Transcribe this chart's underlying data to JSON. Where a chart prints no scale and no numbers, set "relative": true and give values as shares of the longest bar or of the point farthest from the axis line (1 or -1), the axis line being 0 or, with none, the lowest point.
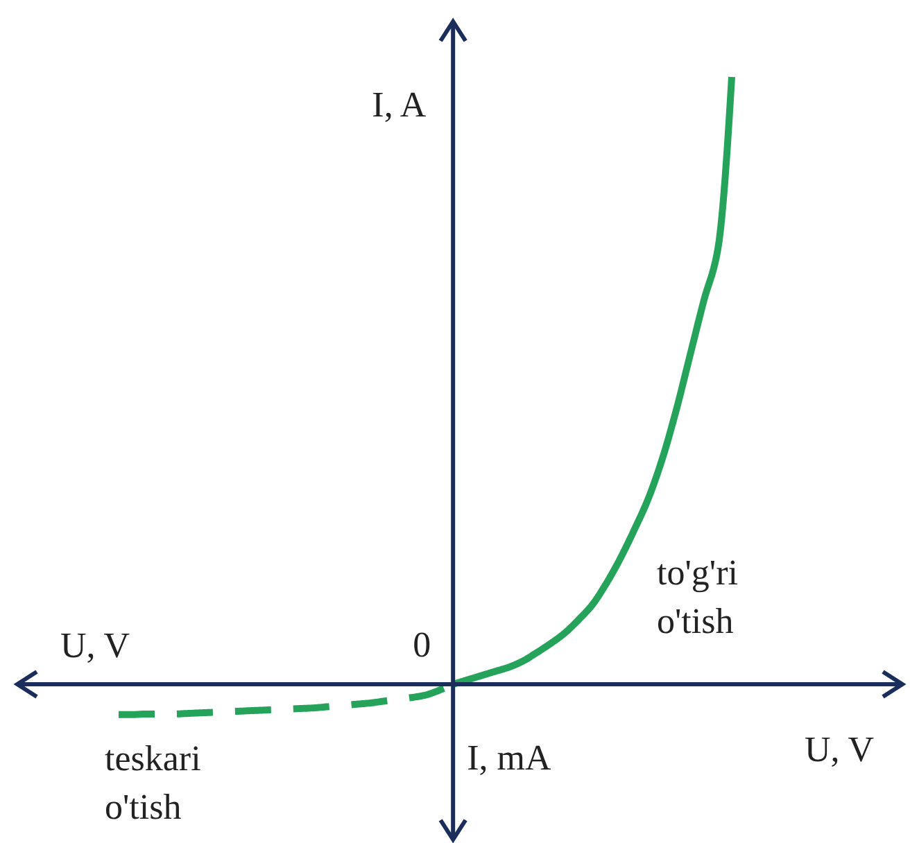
{
  "chart_data": {
    "type": "line",
    "relative": true,
    "xlabel": "U, V",
    "ylabel": "I, A",
    "annotations": [
      "0",
      "U, V",
      "I, mA"
    ],
    "categories": [
      null,
      null,
      null,
      null,
      null,
      null,
      null,
      null,
      null,
      null,
      null,
      null,
      null,
      null,
      null,
      null,
      null,
      null,
      null,
      null,
      null,
      null,
      null,
      null,
      null,
      null,
      null,
      null,
      null,
      null,
      null,
      null,
      null,
      null,
      null,
      null,
      null,
      null,
      null,
      null,
      null,
      null,
      null,
      null,
      null
    ],
    "series": [
      {
        "name": "to'g'ri o'tish",
        "color": "#25a35a",
        "line_style": "solid",
        "values": [
          null,
          null,
          null,
          null,
          null,
          null,
          null,
          null,
          null,
          null,
          null,
          null,
          null,
          null,
          null,
          null,
          null,
          null,
          null,
          null,
          null,
          null,
          null,
          null,
          0,
          0.007,
          0.014,
          0.021,
          0.028,
          0.038,
          0.052,
          0.067,
          0.084,
          0.106,
          0.131,
          0.166,
          0.207,
          0.254,
          0.305,
          0.37,
          0.45,
          0.541,
          0.632,
          0.716,
          1.0
        ]
      },
      {
        "name": "teskari o'tish",
        "color": "#25a35a",
        "line_style": "dashed",
        "values": [
          -0.05,
          -0.05,
          -0.049,
          -0.049,
          -0.049,
          -0.048,
          -0.047,
          -0.046,
          -0.045,
          -0.044,
          -0.043,
          -0.042,
          -0.041,
          -0.04,
          -0.039,
          -0.037,
          -0.035,
          -0.033,
          -0.031,
          -0.028,
          -0.025,
          -0.022,
          -0.018,
          -0.01,
          0,
          null,
          null,
          null,
          null,
          null,
          null,
          null,
          null,
          null,
          null,
          null,
          null,
          null,
          null,
          null,
          null,
          null,
          null,
          null,
          null
        ]
      }
    ]
  }
}
